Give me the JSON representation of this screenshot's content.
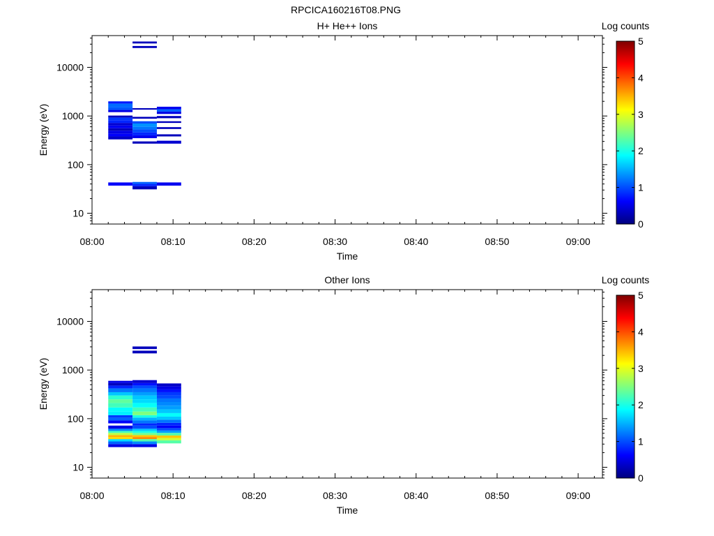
{
  "figure": {
    "title": "RPCICA160216T08.PNG"
  },
  "colorscale": {
    "stops": [
      "#00007f",
      "#0000ff",
      "#007fff",
      "#00ffff",
      "#7fff7f",
      "#ffff00",
      "#ff7f00",
      "#ff0000",
      "#7f0000"
    ]
  },
  "chart_data": [
    {
      "type": "heatmap",
      "title": "H+ He++ Ions",
      "xlabel": "Time",
      "ylabel": "Energy (eV)",
      "x_ticks": [
        "08:00",
        "08:10",
        "08:20",
        "08:30",
        "08:40",
        "08:50",
        "09:00"
      ],
      "xlim": [
        "08:00",
        "09:03"
      ],
      "y_scale": "log",
      "y_ticks": [
        "10",
        "100",
        "1000",
        "10000"
      ],
      "ylim": [
        6,
        45000
      ],
      "colorbar": {
        "label": "Log counts",
        "ticks": [
          "0",
          "1",
          "2",
          "3",
          "4",
          "5"
        ],
        "range": [
          0,
          5
        ]
      },
      "time_bins": [
        {
          "start": "08:02",
          "end": "08:05",
          "cells": [
            {
              "e": [
                37,
                43
              ],
              "v": 0.6
            },
            {
              "e": [
                330,
                380
              ],
              "v": 0.35
            },
            {
              "e": [
                380,
                430
              ],
              "v": 0.6
            },
            {
              "e": [
                430,
                500
              ],
              "v": 0.5
            },
            {
              "e": [
                500,
                560
              ],
              "v": 0.3
            },
            {
              "e": [
                560,
                640
              ],
              "v": 0.55
            },
            {
              "e": [
                640,
                720
              ],
              "v": 0.4
            },
            {
              "e": [
                720,
                820
              ],
              "v": 0.8
            },
            {
              "e": [
                820,
                930
              ],
              "v": 0.9
            },
            {
              "e": [
                930,
                1020
              ],
              "v": 0.3
            },
            {
              "e": [
                1200,
                1330
              ],
              "v": 0.5
            },
            {
              "e": [
                1330,
                1500
              ],
              "v": 1.05
            },
            {
              "e": [
                1500,
                1800
              ],
              "v": 1.15
            },
            {
              "e": [
                1800,
                2000
              ],
              "v": 0.75
            }
          ]
        },
        {
          "start": "08:05",
          "end": "08:08",
          "cells": [
            {
              "e": [
                31,
                36
              ],
              "v": 0.3
            },
            {
              "e": [
                36,
                40
              ],
              "v": 0.8
            },
            {
              "e": [
                40,
                44
              ],
              "v": 1.1
            },
            {
              "e": [
                270,
                300
              ],
              "v": 0.3
            },
            {
              "e": [
                350,
                400
              ],
              "v": 0.55
            },
            {
              "e": [
                400,
                460
              ],
              "v": 0.8
            },
            {
              "e": [
                460,
                530
              ],
              "v": 1.0
            },
            {
              "e": [
                530,
                600
              ],
              "v": 1.2
            },
            {
              "e": [
                600,
                700
              ],
              "v": 1.35
            },
            {
              "e": [
                700,
                780
              ],
              "v": 1.0
            },
            {
              "e": [
                880,
                960
              ],
              "v": 0.3
            },
            {
              "e": [
                1350,
                1450
              ],
              "v": 0.3
            },
            {
              "e": [
                25000,
                27500
              ],
              "v": 0.3
            },
            {
              "e": [
                31000,
                34000
              ],
              "v": 0.3
            }
          ]
        },
        {
          "start": "08:08",
          "end": "08:11",
          "cells": [
            {
              "e": [
                37,
                43
              ],
              "v": 0.55
            },
            {
              "e": [
                270,
                310
              ],
              "v": 0.4
            },
            {
              "e": [
                380,
                420
              ],
              "v": 0.3
            },
            {
              "e": [
                540,
                590
              ],
              "v": 0.3
            },
            {
              "e": [
                720,
                780
              ],
              "v": 0.3
            },
            {
              "e": [
                900,
                1000
              ],
              "v": 0.3
            },
            {
              "e": [
                1100,
                1230
              ],
              "v": 0.5
            },
            {
              "e": [
                1230,
                1380
              ],
              "v": 1.1
            },
            {
              "e": [
                1380,
                1550
              ],
              "v": 0.55
            }
          ]
        }
      ]
    },
    {
      "type": "heatmap",
      "title": "Other Ions",
      "xlabel": "Time",
      "ylabel": "Energy (eV)",
      "x_ticks": [
        "08:00",
        "08:10",
        "08:20",
        "08:30",
        "08:40",
        "08:50",
        "09:00"
      ],
      "xlim": [
        "08:00",
        "09:03"
      ],
      "y_scale": "log",
      "y_ticks": [
        "10",
        "100",
        "1000",
        "10000"
      ],
      "ylim": [
        6,
        45000
      ],
      "colorbar": {
        "label": "Log counts",
        "ticks": [
          "0",
          "1",
          "2",
          "3",
          "4",
          "5"
        ],
        "range": [
          0,
          5
        ]
      },
      "time_bins": [
        {
          "start": "08:02",
          "end": "08:05",
          "cells": [
            {
              "e": [
                26,
                30
              ],
              "v": 0.5
            },
            {
              "e": [
                30,
                34
              ],
              "v": 1.1
            },
            {
              "e": [
                34,
                38
              ],
              "v": 1.7
            },
            {
              "e": [
                38,
                42
              ],
              "v": 3.3
            },
            {
              "e": [
                42,
                46
              ],
              "v": 3.5
            },
            {
              "e": [
                46,
                51
              ],
              "v": 2.8
            },
            {
              "e": [
                51,
                56
              ],
              "v": 2.2
            },
            {
              "e": [
                56,
                62
              ],
              "v": 1.3
            },
            {
              "e": [
                62,
                72
              ],
              "v": 0.5
            },
            {
              "e": [
                80,
                92
              ],
              "v": 0.6
            },
            {
              "e": [
                92,
                105
              ],
              "v": 1.1
            },
            {
              "e": [
                105,
                118
              ],
              "v": 0.9
            },
            {
              "e": [
                118,
                140
              ],
              "v": 1.8
            },
            {
              "e": [
                140,
                170
              ],
              "v": 1.9
            },
            {
              "e": [
                170,
                210
              ],
              "v": 2.2
            },
            {
              "e": [
                210,
                250
              ],
              "v": 2.35
            },
            {
              "e": [
                250,
                300
              ],
              "v": 2.1
            },
            {
              "e": [
                300,
                350
              ],
              "v": 1.6
            },
            {
              "e": [
                350,
                420
              ],
              "v": 1.2
            },
            {
              "e": [
                420,
                480
              ],
              "v": 0.8
            },
            {
              "e": [
                480,
                540
              ],
              "v": 0.3
            },
            {
              "e": [
                540,
                600
              ],
              "v": 0.5
            }
          ]
        },
        {
          "start": "08:05",
          "end": "08:08",
          "cells": [
            {
              "e": [
                26,
                30
              ],
              "v": 0.5
            },
            {
              "e": [
                30,
                34
              ],
              "v": 1.3
            },
            {
              "e": [
                34,
                38
              ],
              "v": 2.3
            },
            {
              "e": [
                38,
                42
              ],
              "v": 3.7
            },
            {
              "e": [
                42,
                46
              ],
              "v": 3.4
            },
            {
              "e": [
                46,
                51
              ],
              "v": 2.4
            },
            {
              "e": [
                51,
                56
              ],
              "v": 2.0
            },
            {
              "e": [
                56,
                62
              ],
              "v": 1.6
            },
            {
              "e": [
                62,
                72
              ],
              "v": 1.0
            },
            {
              "e": [
                72,
                80
              ],
              "v": 0.8
            },
            {
              "e": [
                80,
                92
              ],
              "v": 1.2
            },
            {
              "e": [
                92,
                105
              ],
              "v": 1.5
            },
            {
              "e": [
                105,
                118
              ],
              "v": 2.0
            },
            {
              "e": [
                118,
                140
              ],
              "v": 2.5
            },
            {
              "e": [
                140,
                170
              ],
              "v": 2.2
            },
            {
              "e": [
                170,
                210
              ],
              "v": 1.9
            },
            {
              "e": [
                210,
                250
              ],
              "v": 1.7
            },
            {
              "e": [
                250,
                300
              ],
              "v": 1.6
            },
            {
              "e": [
                300,
                350
              ],
              "v": 1.4
            },
            {
              "e": [
                350,
                420
              ],
              "v": 1.2
            },
            {
              "e": [
                420,
                480
              ],
              "v": 1.0
            },
            {
              "e": [
                480,
                540
              ],
              "v": 0.7
            },
            {
              "e": [
                540,
                620
              ],
              "v": 0.4
            },
            {
              "e": [
                2200,
                2500
              ],
              "v": 0.3
            },
            {
              "e": [
                2700,
                3050
              ],
              "v": 0.3
            }
          ]
        },
        {
          "start": "08:08",
          "end": "08:11",
          "cells": [
            {
              "e": [
                31,
                36
              ],
              "v": 2.3
            },
            {
              "e": [
                36,
                40
              ],
              "v": 2.9
            },
            {
              "e": [
                40,
                45
              ],
              "v": 3.4
            },
            {
              "e": [
                45,
                51
              ],
              "v": 2.3
            },
            {
              "e": [
                51,
                57
              ],
              "v": 1.4
            },
            {
              "e": [
                57,
                64
              ],
              "v": 1.0
            },
            {
              "e": [
                64,
                72
              ],
              "v": 0.6
            },
            {
              "e": [
                72,
                82
              ],
              "v": 0.8
            },
            {
              "e": [
                82,
                95
              ],
              "v": 1.2
            },
            {
              "e": [
                95,
                110
              ],
              "v": 1.6
            },
            {
              "e": [
                110,
                130
              ],
              "v": 1.9
            },
            {
              "e": [
                130,
                155
              ],
              "v": 1.6
            },
            {
              "e": [
                155,
                185
              ],
              "v": 1.4
            },
            {
              "e": [
                185,
                220
              ],
              "v": 1.3
            },
            {
              "e": [
                220,
                260
              ],
              "v": 1.2
            },
            {
              "e": [
                260,
                300
              ],
              "v": 1.0
            },
            {
              "e": [
                300,
                350
              ],
              "v": 0.9
            },
            {
              "e": [
                350,
                400
              ],
              "v": 0.7
            },
            {
              "e": [
                400,
                460
              ],
              "v": 0.5
            },
            {
              "e": [
                460,
                530
              ],
              "v": 0.35
            }
          ]
        }
      ]
    }
  ]
}
